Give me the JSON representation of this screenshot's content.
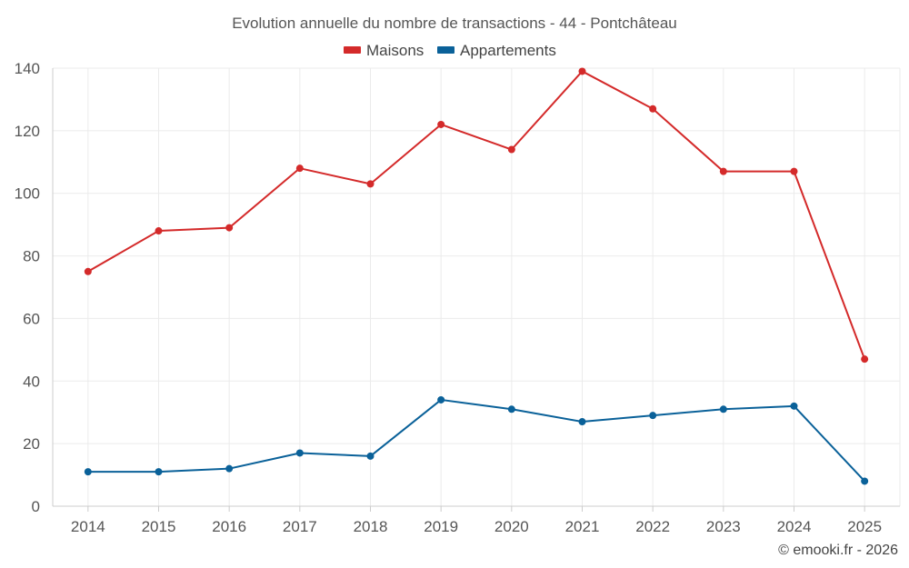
{
  "chart_data": {
    "type": "line",
    "title": "Evolution annuelle du nombre de transactions - 44 - Pontchâteau",
    "xlabel": "",
    "ylabel": "",
    "categories": [
      "2014",
      "2015",
      "2016",
      "2017",
      "2018",
      "2019",
      "2020",
      "2021",
      "2022",
      "2023",
      "2024",
      "2025"
    ],
    "ylim": [
      0,
      140
    ],
    "yticks": [
      0,
      20,
      40,
      60,
      80,
      100,
      120,
      140
    ],
    "grid": true,
    "legend_position": "top-center",
    "series": [
      {
        "name": "Maisons",
        "color": "#d42a2a",
        "values": [
          75,
          88,
          89,
          108,
          103,
          122,
          114,
          139,
          127,
          107,
          107,
          47
        ]
      },
      {
        "name": "Appartements",
        "color": "#0a6199",
        "values": [
          11,
          11,
          12,
          17,
          16,
          34,
          31,
          27,
          29,
          31,
          32,
          8
        ]
      }
    ]
  },
  "credit": "© emooki.fr - 2026"
}
